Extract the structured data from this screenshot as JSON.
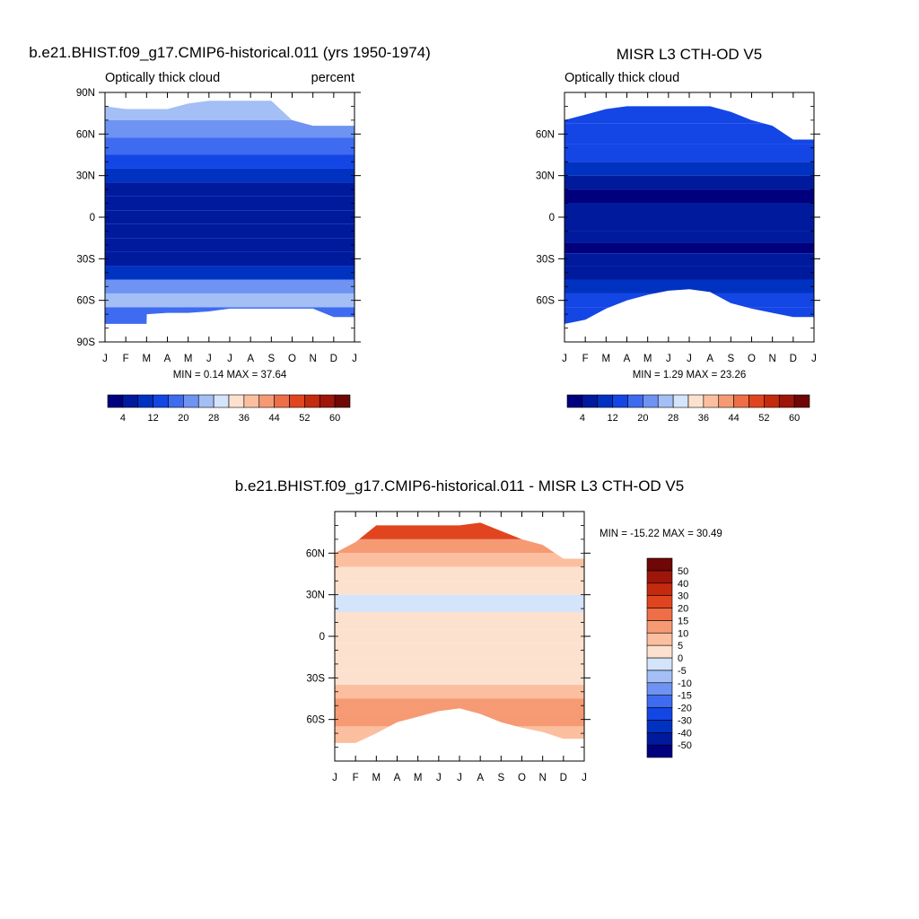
{
  "chart_data": [
    {
      "type": "heatmap",
      "id": "model",
      "title": "b.e21.BHIST.f09_g17.CMIP6-historical.011 (yrs 1950-1974)",
      "left_string": "Optically thick cloud",
      "right_string": "percent",
      "x_tick_labels": [
        "J",
        "F",
        "M",
        "A",
        "M",
        "J",
        "J",
        "A",
        "S",
        "O",
        "N",
        "D",
        "J"
      ],
      "y_tick_labels": [
        "90N",
        "60N",
        "30N",
        "0",
        "30S",
        "60S",
        "90S"
      ],
      "y_tick_values": [
        90,
        60,
        30,
        0,
        -30,
        -60,
        -90
      ],
      "ylim": [
        -90,
        90
      ],
      "min_max_text": "MIN =   0.14 MAX =  37.64",
      "min": 0.14,
      "max": 37.64,
      "colorbar": {
        "levels": [
          4,
          8,
          12,
          16,
          20,
          24,
          28,
          32,
          36,
          40,
          44,
          48,
          52,
          56,
          60
        ],
        "labels": [
          "4",
          "12",
          "20",
          "28",
          "36",
          "44",
          "52",
          "60"
        ],
        "colors": [
          "#00007f",
          "#001a9e",
          "#0032c2",
          "#1446e6",
          "#3e6bf0",
          "#6e93f2",
          "#a3bff5",
          "#d4e4fa",
          "#fde1cf",
          "#fbbfa0",
          "#f69a74",
          "#ee6e47",
          "#e0451f",
          "#c42a0e",
          "#9e150a",
          "#6e0705"
        ]
      },
      "lat_profile": [
        {
          "lat": 75,
          "value": 24
        },
        {
          "lat": 65,
          "value": 22
        },
        {
          "lat": 50,
          "value": 17
        },
        {
          "lat": 40,
          "value": 13
        },
        {
          "lat": 30,
          "value": 9
        },
        {
          "lat": 20,
          "value": 5
        },
        {
          "lat": 10,
          "value": 4
        },
        {
          "lat": 0,
          "value": 6
        },
        {
          "lat": -10,
          "value": 6
        },
        {
          "lat": -20,
          "value": 4
        },
        {
          "lat": -30,
          "value": 6
        },
        {
          "lat": -40,
          "value": 11
        },
        {
          "lat": -50,
          "value": 20
        },
        {
          "lat": -60,
          "value": 25
        },
        {
          "lat": -70,
          "value": 18
        }
      ]
    },
    {
      "type": "heatmap",
      "id": "obs",
      "title": "MISR L3 CTH-OD V5",
      "left_string": "Optically thick cloud",
      "x_tick_labels": [
        "J",
        "F",
        "M",
        "A",
        "M",
        "J",
        "J",
        "A",
        "S",
        "O",
        "N",
        "D",
        "J"
      ],
      "y_tick_labels": [
        "60N",
        "30N",
        "0",
        "30S",
        "60S"
      ],
      "y_tick_values": [
        60,
        30,
        0,
        -30,
        -60
      ],
      "ylim": [
        -90,
        90
      ],
      "min_max_text": "MIN =   1.29 MAX =  23.26",
      "min": 1.29,
      "max": 23.26,
      "colorbar": {
        "levels": [
          4,
          8,
          12,
          16,
          20,
          24,
          28,
          32,
          36,
          40,
          44,
          48,
          52,
          56,
          60
        ],
        "labels": [
          "4",
          "12",
          "20",
          "28",
          "36",
          "44",
          "52",
          "60"
        ],
        "colors": [
          "#00007f",
          "#001a9e",
          "#0032c2",
          "#1446e6",
          "#3e6bf0",
          "#6e93f2",
          "#a3bff5",
          "#d4e4fa",
          "#fde1cf",
          "#fbbfa0",
          "#f69a74",
          "#ee6e47",
          "#e0451f",
          "#c42a0e",
          "#9e150a",
          "#6e0705"
        ]
      },
      "lat_profile": [
        {
          "lat": 75,
          "value": 13
        },
        {
          "lat": 60,
          "value": 13
        },
        {
          "lat": 45,
          "value": 12
        },
        {
          "lat": 35,
          "value": 9
        },
        {
          "lat": 25,
          "value": 5
        },
        {
          "lat": 15,
          "value": 3
        },
        {
          "lat": 5,
          "value": 6
        },
        {
          "lat": -5,
          "value": 7
        },
        {
          "lat": -15,
          "value": 4
        },
        {
          "lat": -22,
          "value": 2
        },
        {
          "lat": -30,
          "value": 5
        },
        {
          "lat": -40,
          "value": 7
        },
        {
          "lat": -50,
          "value": 10
        },
        {
          "lat": -60,
          "value": 13
        },
        {
          "lat": -70,
          "value": 14
        }
      ]
    },
    {
      "type": "heatmap",
      "id": "difference",
      "title": "b.e21.BHIST.f09_g17.CMIP6-historical.011 - MISR L3 CTH-OD V5",
      "x_tick_labels": [
        "J",
        "F",
        "M",
        "A",
        "M",
        "J",
        "J",
        "A",
        "S",
        "O",
        "N",
        "D",
        "J"
      ],
      "y_tick_labels": [
        "60N",
        "30N",
        "0",
        "30S",
        "60S"
      ],
      "y_tick_values": [
        60,
        30,
        0,
        -30,
        -60
      ],
      "ylim": [
        -90,
        90
      ],
      "min_max_text": "MIN = -15.22 MAX =  30.49",
      "min": -15.22,
      "max": 30.49,
      "colorbar": {
        "levels": [
          -50,
          -40,
          -30,
          -20,
          -15,
          -10,
          -5,
          0,
          5,
          10,
          15,
          20,
          30,
          40,
          50
        ],
        "labels": [
          "-50",
          "-40",
          "-30",
          "-20",
          "-15",
          "-10",
          "-5",
          "0",
          "5",
          "10",
          "15",
          "20",
          "30",
          "40",
          "50"
        ],
        "colors": [
          "#00007f",
          "#001a9e",
          "#0032c2",
          "#1446e6",
          "#3e6bf0",
          "#6e93f2",
          "#a3bff5",
          "#d4e4fa",
          "#fde1cf",
          "#fbbfa0",
          "#f69a74",
          "#ee6e47",
          "#e0451f",
          "#c42a0e",
          "#9e150a",
          "#6e0705"
        ]
      },
      "lat_profile": [
        {
          "lat": 75,
          "value": 22
        },
        {
          "lat": 65,
          "value": 12
        },
        {
          "lat": 55,
          "value": 6
        },
        {
          "lat": 45,
          "value": 3
        },
        {
          "lat": 35,
          "value": 2
        },
        {
          "lat": 25,
          "value": -1
        },
        {
          "lat": 10,
          "value": 2
        },
        {
          "lat": 0,
          "value": 1
        },
        {
          "lat": -10,
          "value": 2
        },
        {
          "lat": -20,
          "value": 1
        },
        {
          "lat": -30,
          "value": 2
        },
        {
          "lat": -40,
          "value": 6
        },
        {
          "lat": -50,
          "value": 11
        },
        {
          "lat": -60,
          "value": 14
        },
        {
          "lat": -70,
          "value": 9
        }
      ]
    }
  ]
}
